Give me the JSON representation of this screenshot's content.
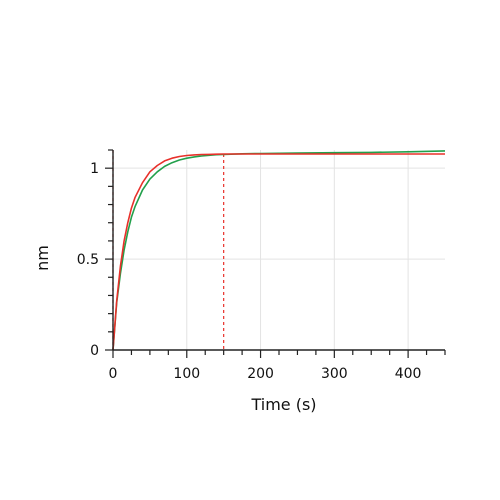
{
  "chart_data": {
    "type": "line",
    "xlabel": "Time (s)",
    "ylabel": "nm",
    "xlim": [
      0,
      450
    ],
    "ylim": [
      0,
      1.1
    ],
    "x_ticks": [
      0,
      100,
      200,
      300,
      400
    ],
    "x_tick_labels": [
      "0",
      "100",
      "200",
      "300",
      "400"
    ],
    "y_ticks": [
      0,
      0.5,
      1
    ],
    "y_tick_labels": [
      "0",
      "0.5",
      "1"
    ],
    "grid": true,
    "marker_line_x": 150,
    "series": [
      {
        "color": "#22a04b",
        "x": [
          0,
          5,
          10,
          15,
          20,
          25,
          30,
          40,
          50,
          60,
          70,
          80,
          90,
          100,
          110,
          120,
          130,
          140,
          150,
          175,
          200,
          250,
          300,
          350,
          400,
          450
        ],
        "y": [
          0,
          0.26,
          0.42,
          0.55,
          0.65,
          0.73,
          0.79,
          0.88,
          0.94,
          0.98,
          1.01,
          1.03,
          1.045,
          1.055,
          1.062,
          1.067,
          1.071,
          1.074,
          1.076,
          1.079,
          1.081,
          1.083,
          1.085,
          1.087,
          1.09,
          1.095
        ]
      },
      {
        "color": "#e8302a",
        "x": [
          0,
          5,
          10,
          15,
          20,
          25,
          30,
          40,
          50,
          60,
          70,
          80,
          90,
          100,
          110,
          120,
          130,
          140,
          150,
          175,
          200,
          250,
          300,
          350,
          400,
          450
        ],
        "y": [
          0,
          0.27,
          0.46,
          0.6,
          0.7,
          0.78,
          0.84,
          0.92,
          0.98,
          1.015,
          1.04,
          1.055,
          1.064,
          1.07,
          1.073,
          1.075,
          1.076,
          1.077,
          1.078,
          1.078,
          1.078,
          1.078,
          1.078,
          1.078,
          1.078,
          1.078
        ]
      }
    ]
  }
}
